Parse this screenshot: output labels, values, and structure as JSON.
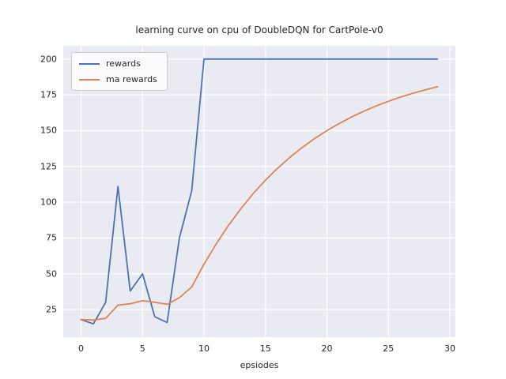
{
  "chart_data": {
    "type": "line",
    "title": "learning curve on cpu of DoubleDQN for CartPole-v0",
    "xlabel": "epsiodes",
    "ylabel": "",
    "x": [
      0,
      1,
      2,
      3,
      4,
      5,
      6,
      7,
      8,
      9,
      10,
      11,
      12,
      13,
      14,
      15,
      16,
      17,
      18,
      19,
      20,
      21,
      22,
      23,
      24,
      25,
      26,
      27,
      28,
      29
    ],
    "series": [
      {
        "name": "rewards",
        "color": "#4c72b0",
        "values": [
          18,
          15,
          30,
          111,
          38,
          50,
          20,
          16,
          75,
          108,
          200,
          200,
          200,
          200,
          200,
          200,
          200,
          200,
          200,
          200,
          200,
          200,
          200,
          200,
          200,
          200,
          200,
          200,
          200,
          200
        ]
      },
      {
        "name": "ma rewards",
        "color": "#dd8452",
        "values": [
          18,
          17.7,
          18.9,
          28.1,
          29.1,
          31.2,
          30.1,
          28.7,
          33.3,
          40.8,
          56.7,
          71.0,
          83.9,
          95.5,
          106.0,
          115.4,
          123.8,
          131.5,
          138.3,
          144.5,
          150.0,
          155.0,
          159.5,
          163.6,
          167.2,
          170.5,
          173.5,
          176.1,
          178.5,
          180.7
        ]
      }
    ],
    "xlim": [
      -1.45,
      30.45
    ],
    "ylim": [
      5.75,
      209.25
    ],
    "xticks": [
      0,
      5,
      10,
      15,
      20,
      25,
      30
    ],
    "yticks": [
      25,
      50,
      75,
      100,
      125,
      150,
      175,
      200
    ],
    "grid": true,
    "legend_position": "upper left",
    "plot_background": "#eaeaf2",
    "grid_color": "#ffffff"
  }
}
